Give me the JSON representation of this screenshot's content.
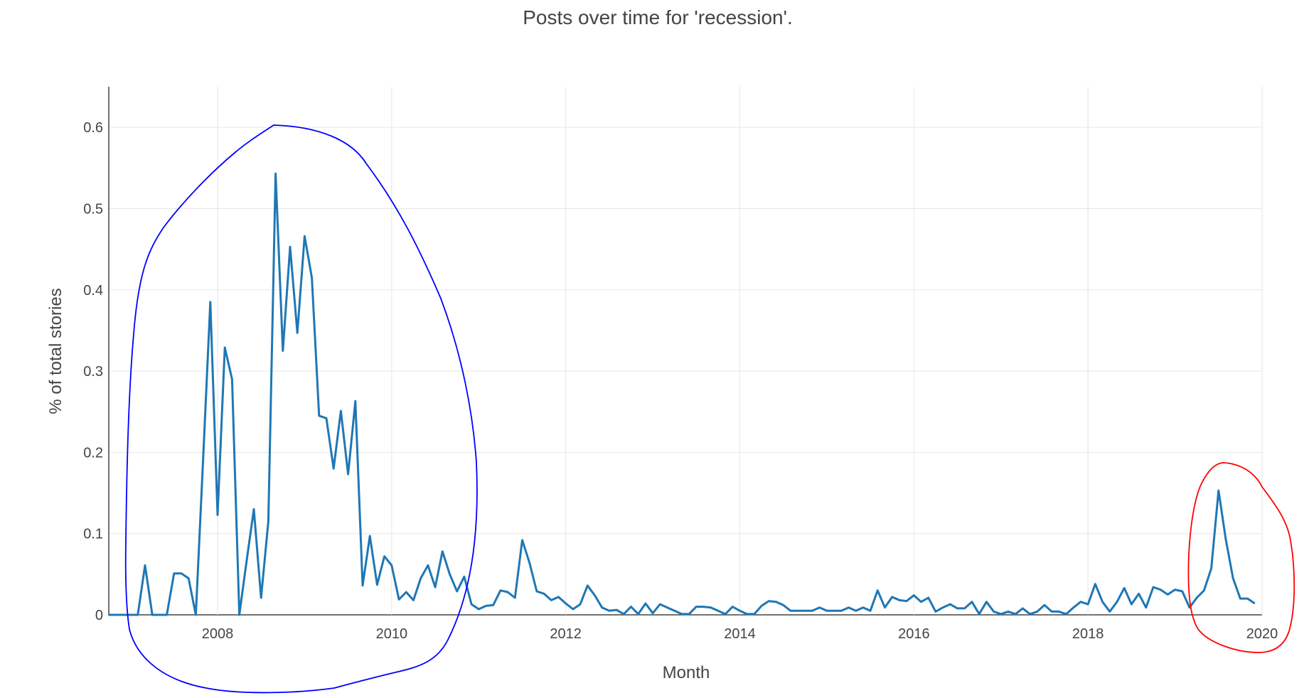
{
  "chart_data": {
    "type": "line",
    "title": "Posts over time for 'recession'.",
    "xlabel": "Month",
    "ylabel": "% of total stories",
    "x_ticks": [
      "2008",
      "2010",
      "2012",
      "2014",
      "2016",
      "2018",
      "2020"
    ],
    "y_ticks": [
      "0",
      "0.1",
      "0.2",
      "0.3",
      "0.4",
      "0.5",
      "0.6"
    ],
    "xlim": [
      "2006-10",
      "2020-01"
    ],
    "ylim": [
      0,
      0.65
    ],
    "grid": true,
    "line_color": "#1f77b4",
    "highlight_colors": [
      "#0000ff",
      "#ff0000"
    ],
    "series": [
      {
        "points": [
          [
            "2006-10",
            0
          ],
          [
            "2006-11",
            0
          ],
          [
            "2006-12",
            0
          ],
          [
            "2007-01",
            0
          ],
          [
            "2007-02",
            0
          ],
          [
            "2007-03",
            0.061
          ],
          [
            "2007-04",
            0
          ],
          [
            "2007-05",
            0
          ],
          [
            "2007-06",
            0
          ],
          [
            "2007-07",
            0.051
          ],
          [
            "2007-08",
            0.051
          ],
          [
            "2007-09",
            0.045
          ],
          [
            "2007-10",
            0
          ],
          [
            "2007-11",
            0.19
          ],
          [
            "2007-12",
            0.385
          ],
          [
            "2008-01",
            0.123
          ],
          [
            "2008-02",
            0.329
          ],
          [
            "2008-03",
            0.29
          ],
          [
            "2008-04",
            0
          ],
          [
            "2008-05",
            0.066
          ],
          [
            "2008-06",
            0.13
          ],
          [
            "2008-07",
            0.021
          ],
          [
            "2008-08",
            0.115
          ],
          [
            "2008-09",
            0.543
          ],
          [
            "2008-10",
            0.325
          ],
          [
            "2008-11",
            0.453
          ],
          [
            "2008-12",
            0.347
          ],
          [
            "2009-01",
            0.466
          ],
          [
            "2009-02",
            0.415
          ],
          [
            "2009-03",
            0.245
          ],
          [
            "2009-04",
            0.242
          ],
          [
            "2009-05",
            0.18
          ],
          [
            "2009-06",
            0.251
          ],
          [
            "2009-07",
            0.173
          ],
          [
            "2009-08",
            0.263
          ],
          [
            "2009-09",
            0.036
          ],
          [
            "2009-10",
            0.097
          ],
          [
            "2009-11",
            0.037
          ],
          [
            "2009-12",
            0.072
          ],
          [
            "2010-01",
            0.061
          ],
          [
            "2010-02",
            0.019
          ],
          [
            "2010-03",
            0.028
          ],
          [
            "2010-04",
            0.018
          ],
          [
            "2010-05",
            0.045
          ],
          [
            "2010-06",
            0.061
          ],
          [
            "2010-07",
            0.034
          ],
          [
            "2010-08",
            0.078
          ],
          [
            "2010-09",
            0.05
          ],
          [
            "2010-10",
            0.029
          ],
          [
            "2010-11",
            0.047
          ],
          [
            "2010-12",
            0.013
          ],
          [
            "2011-01",
            0.007
          ],
          [
            "2011-02",
            0.011
          ],
          [
            "2011-03",
            0.012
          ],
          [
            "2011-04",
            0.03
          ],
          [
            "2011-05",
            0.028
          ],
          [
            "2011-06",
            0.021
          ],
          [
            "2011-07",
            0.092
          ],
          [
            "2011-08",
            0.064
          ],
          [
            "2011-09",
            0.029
          ],
          [
            "2011-10",
            0.026
          ],
          [
            "2011-11",
            0.018
          ],
          [
            "2011-12",
            0.022
          ],
          [
            "2012-01",
            0.014
          ],
          [
            "2012-02",
            0.007
          ],
          [
            "2012-03",
            0.013
          ],
          [
            "2012-04",
            0.036
          ],
          [
            "2012-05",
            0.024
          ],
          [
            "2012-06",
            0.009
          ],
          [
            "2012-07",
            0.005
          ],
          [
            "2012-08",
            0.006
          ],
          [
            "2012-09",
            0.001
          ],
          [
            "2012-10",
            0.01
          ],
          [
            "2012-11",
            0.001
          ],
          [
            "2012-12",
            0.014
          ],
          [
            "2013-01",
            0.002
          ],
          [
            "2013-02",
            0.013
          ],
          [
            "2013-03",
            0.009
          ],
          [
            "2013-04",
            0.005
          ],
          [
            "2013-05",
            0.001
          ],
          [
            "2013-06",
            0.001
          ],
          [
            "2013-07",
            0.01
          ],
          [
            "2013-08",
            0.01
          ],
          [
            "2013-09",
            0.009
          ],
          [
            "2013-10",
            0.005
          ],
          [
            "2013-11",
            0.001
          ],
          [
            "2013-12",
            0.01
          ],
          [
            "2014-01",
            0.005
          ],
          [
            "2014-02",
            0.001
          ],
          [
            "2014-03",
            0.001
          ],
          [
            "2014-04",
            0.011
          ],
          [
            "2014-05",
            0.017
          ],
          [
            "2014-06",
            0.016
          ],
          [
            "2014-07",
            0.012
          ],
          [
            "2014-08",
            0.005
          ],
          [
            "2014-09",
            0.005
          ],
          [
            "2014-10",
            0.005
          ],
          [
            "2014-11",
            0.005
          ],
          [
            "2014-12",
            0.009
          ],
          [
            "2015-01",
            0.005
          ],
          [
            "2015-02",
            0.005
          ],
          [
            "2015-03",
            0.005
          ],
          [
            "2015-04",
            0.009
          ],
          [
            "2015-05",
            0.005
          ],
          [
            "2015-06",
            0.009
          ],
          [
            "2015-07",
            0.005
          ],
          [
            "2015-08",
            0.03
          ],
          [
            "2015-09",
            0.009
          ],
          [
            "2015-10",
            0.022
          ],
          [
            "2015-11",
            0.018
          ],
          [
            "2015-12",
            0.017
          ],
          [
            "2016-01",
            0.024
          ],
          [
            "2016-02",
            0.016
          ],
          [
            "2016-03",
            0.021
          ],
          [
            "2016-04",
            0.004
          ],
          [
            "2016-05",
            0.009
          ],
          [
            "2016-06",
            0.013
          ],
          [
            "2016-07",
            0.008
          ],
          [
            "2016-08",
            0.008
          ],
          [
            "2016-09",
            0.016
          ],
          [
            "2016-10",
            0.001
          ],
          [
            "2016-11",
            0.016
          ],
          [
            "2016-12",
            0.004
          ],
          [
            "2017-01",
            0.001
          ],
          [
            "2017-02",
            0.004
          ],
          [
            "2017-03",
            0.001
          ],
          [
            "2017-04",
            0.008
          ],
          [
            "2017-05",
            0.001
          ],
          [
            "2017-06",
            0.004
          ],
          [
            "2017-07",
            0.012
          ],
          [
            "2017-08",
            0.004
          ],
          [
            "2017-09",
            0.004
          ],
          [
            "2017-10",
            0.001
          ],
          [
            "2017-11",
            0.009
          ],
          [
            "2017-12",
            0.016
          ],
          [
            "2018-01",
            0.013
          ],
          [
            "2018-02",
            0.038
          ],
          [
            "2018-03",
            0.016
          ],
          [
            "2018-04",
            0.004
          ],
          [
            "2018-05",
            0.016
          ],
          [
            "2018-06",
            0.033
          ],
          [
            "2018-07",
            0.013
          ],
          [
            "2018-08",
            0.026
          ],
          [
            "2018-09",
            0.009
          ],
          [
            "2018-10",
            0.034
          ],
          [
            "2018-11",
            0.031
          ],
          [
            "2018-12",
            0.025
          ],
          [
            "2019-01",
            0.031
          ],
          [
            "2019-02",
            0.029
          ],
          [
            "2019-03",
            0.009
          ],
          [
            "2019-04",
            0.021
          ],
          [
            "2019-05",
            0.03
          ],
          [
            "2019-06",
            0.057
          ],
          [
            "2019-07",
            0.153
          ],
          [
            "2019-08",
            0.093
          ],
          [
            "2019-09",
            0.045
          ],
          [
            "2019-10",
            0.02
          ],
          [
            "2019-11",
            0.02
          ],
          [
            "2019-12",
            0.014
          ]
        ]
      }
    ]
  }
}
